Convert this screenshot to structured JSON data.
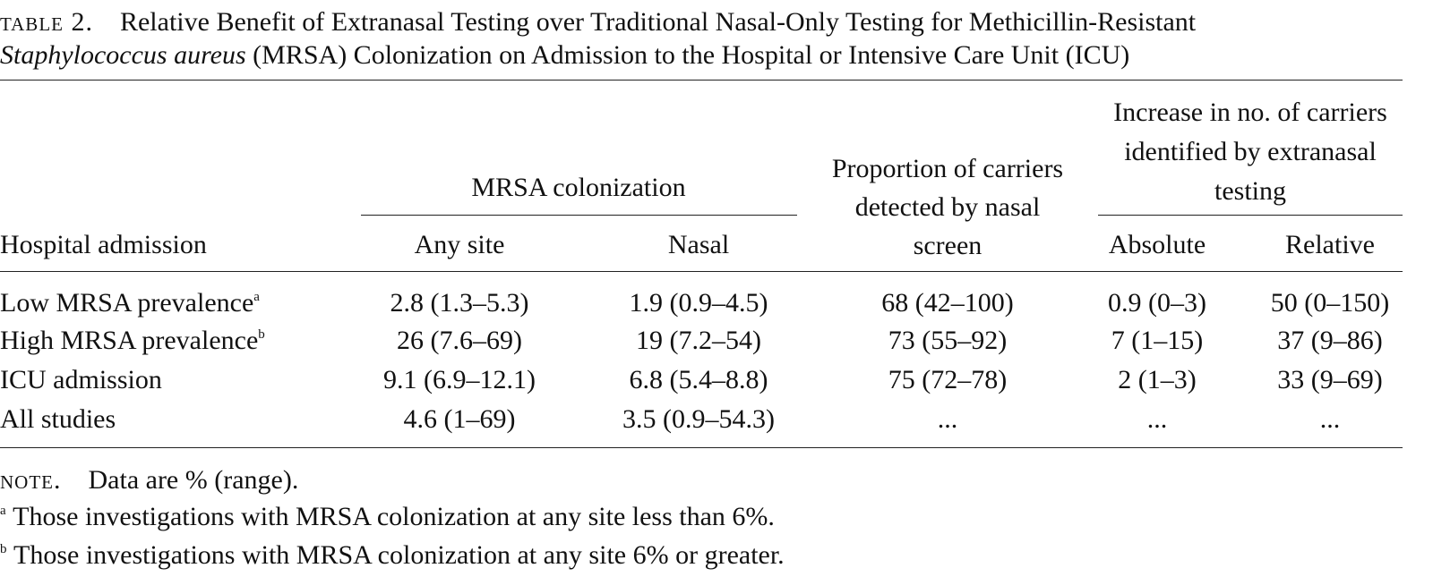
{
  "caption": {
    "label": "table 2.",
    "title_start": "Relative Benefit of Extranasal Testing over Traditional Nasal-Only Testing for Methicillin-Resistant",
    "title_italic": "Staphylococcus aureus",
    "title_end": "(MRSA) Colonization on Admission to the Hospital or Intensive Care Unit (ICU)"
  },
  "table": {
    "group_headers": [
      "MRSA colonization",
      "Increase in no. of carriers identified by extranasal testing"
    ],
    "columns": [
      "Hospital admission",
      "Any site",
      "Nasal",
      "Proportion of carriers detected by nasal screen",
      "Absolute",
      "Relative"
    ],
    "rows": [
      {
        "label": "Low MRSA prevalence",
        "mark": "a",
        "cells": [
          "2.8 (1.3–5.3)",
          "1.9 (0.9–4.5)",
          "68 (42–100)",
          "0.9 (0–3)",
          "50 (0–150)"
        ]
      },
      {
        "label": "High MRSA prevalence",
        "mark": "b",
        "cells": [
          "26 (7.6–69)",
          "19 (7.2–54)",
          "73 (55–92)",
          "7 (1–15)",
          "37 (9–86)"
        ]
      },
      {
        "label": "ICU admission",
        "cells": [
          "9.1 (6.9–12.1)",
          "6.8 (5.4–8.8)",
          "75 (72–78)",
          "2 (1–3)",
          "33 (9–69)"
        ]
      },
      {
        "label": "All studies",
        "cells": [
          "4.6 (1–69)",
          "3.5 (0.9–54.3)",
          "...",
          "...",
          "..."
        ]
      }
    ]
  },
  "notes": {
    "label": "note.",
    "text": "Data are % (range).",
    "footnotes": [
      {
        "mark": "a",
        "text": "Those investigations with MRSA colonization at any site less than 6%."
      },
      {
        "mark": "b",
        "text": "Those investigations with MRSA colonization at any site 6% or greater."
      }
    ]
  }
}
